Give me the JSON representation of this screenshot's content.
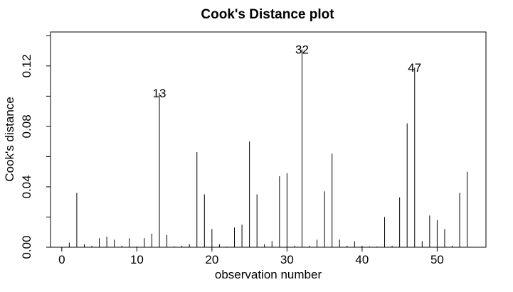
{
  "chart_data": {
    "type": "bar",
    "title": "Cook's Distance plot",
    "xlabel": "observation number",
    "ylabel": "Cook's distance",
    "xlim": [
      -1.5,
      56.5
    ],
    "ylim": [
      0,
      0.1425
    ],
    "xticks": [
      0,
      10,
      20,
      30,
      40,
      50
    ],
    "yticks": [
      0.0,
      0.04,
      0.08,
      0.12
    ],
    "ytick_labels": [
      "0.00",
      "0.04",
      "0.08",
      "0.12"
    ],
    "xtick_labels": [
      "0",
      "10",
      "20",
      "30",
      "40",
      "50"
    ],
    "grid": false,
    "x": [
      1,
      2,
      3,
      4,
      5,
      6,
      7,
      8,
      9,
      10,
      11,
      12,
      13,
      14,
      15,
      16,
      17,
      18,
      19,
      20,
      21,
      22,
      23,
      24,
      25,
      26,
      27,
      28,
      29,
      30,
      31,
      32,
      33,
      34,
      35,
      36,
      37,
      38,
      39,
      40,
      41,
      42,
      43,
      44,
      45,
      46,
      47,
      48,
      49,
      50,
      51,
      52,
      53,
      54
    ],
    "values": [
      0.003,
      0.036,
      0.002,
      0.001,
      0.006,
      0.007,
      0.005,
      0.001,
      0.006,
      0.0005,
      0.006,
      0.009,
      0.102,
      0.008,
      0.0005,
      0.001,
      0.002,
      0.063,
      0.035,
      0.012,
      0.002,
      0.0005,
      0.013,
      0.015,
      0.07,
      0.035,
      0.002,
      0.004,
      0.047,
      0.049,
      0.001,
      0.131,
      0.001,
      0.005,
      0.037,
      0.062,
      0.005,
      0.001,
      0.004,
      0.001,
      0.0005,
      0.0005,
      0.02,
      0.001,
      0.033,
      0.082,
      0.119,
      0.004,
      0.021,
      0.018,
      0.012,
      0.001,
      0.036,
      0.05
    ],
    "annotations": [
      {
        "x": 13,
        "label": "13"
      },
      {
        "x": 32,
        "label": "32"
      },
      {
        "x": 47,
        "label": "47"
      }
    ]
  }
}
